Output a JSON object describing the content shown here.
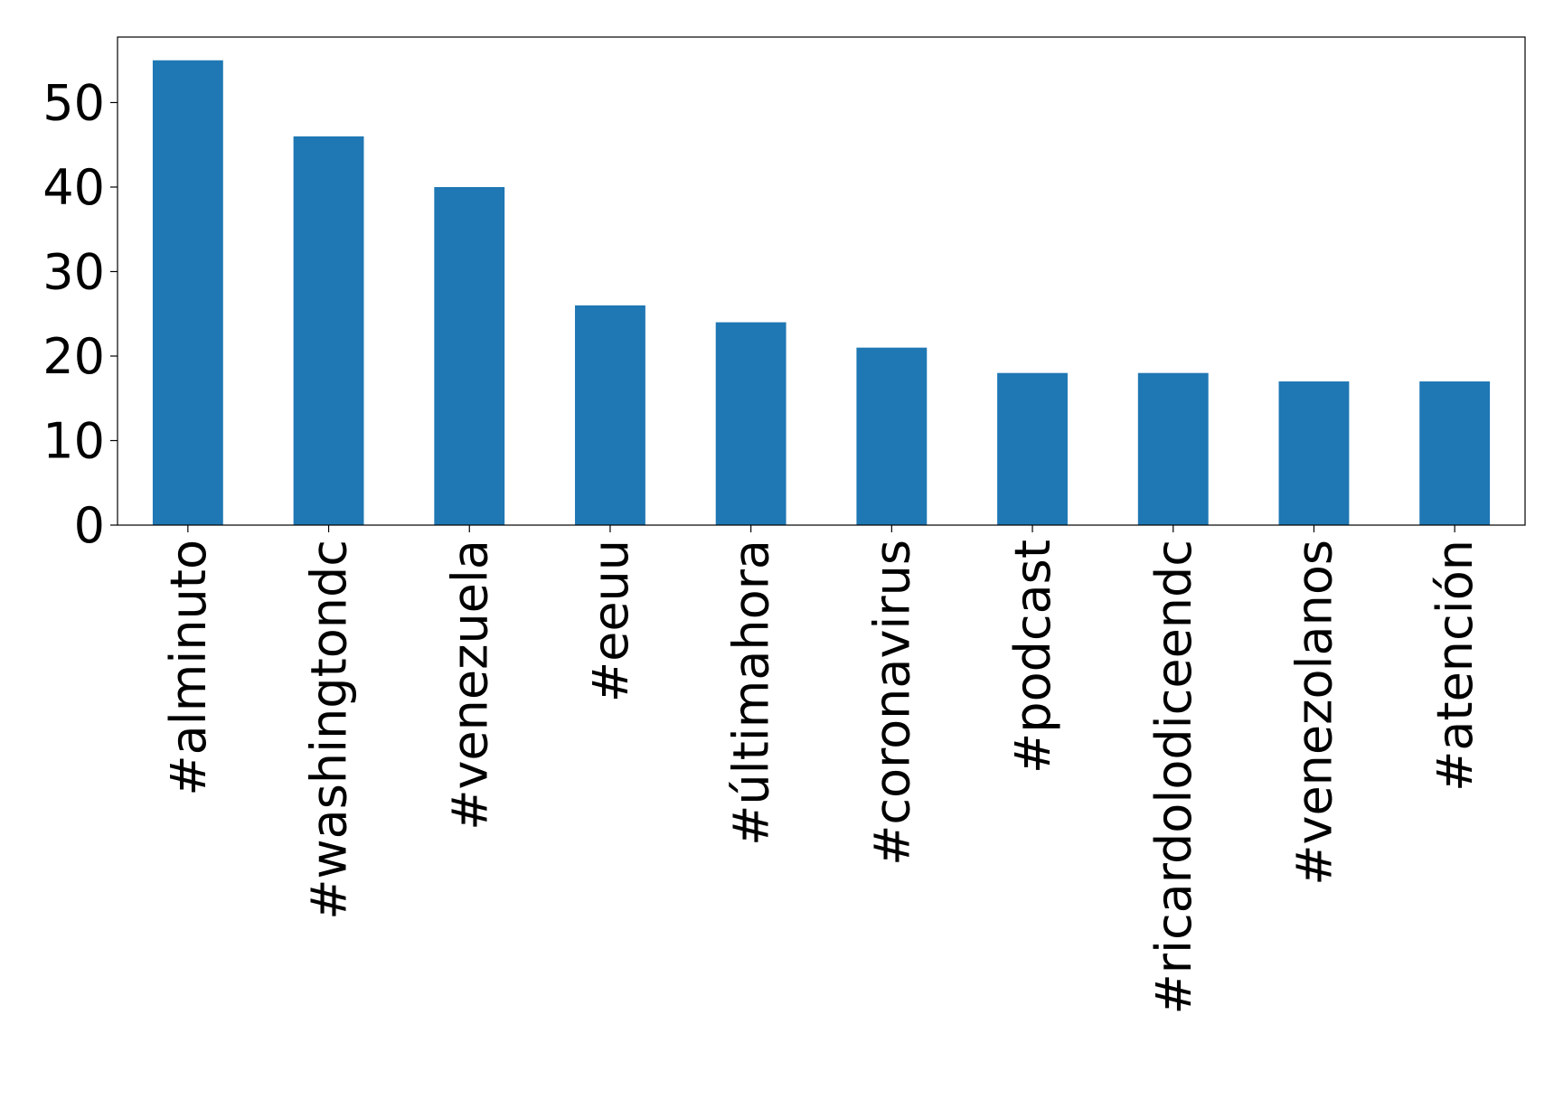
{
  "chart_data": {
    "type": "bar",
    "categories": [
      "#alminuto",
      "#washingtondc",
      "#venezuela",
      "#eeuu",
      "#últimahora",
      "#coronavirus",
      "#podcast",
      "#ricardolodiceendc",
      "#venezolanos",
      "#atención"
    ],
    "values": [
      55,
      46,
      40,
      26,
      24,
      21,
      18,
      18,
      17,
      17
    ],
    "color": "#1f77b4",
    "ylim": [
      0,
      57.75
    ],
    "yticks": [
      0,
      10,
      20,
      30,
      40,
      50
    ],
    "grid": false
  }
}
